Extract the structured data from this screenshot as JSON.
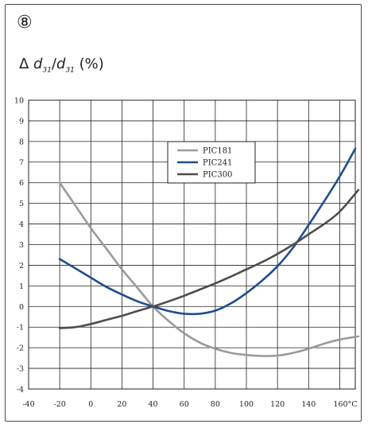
{
  "badge": "⑧",
  "ylabel": {
    "prefix": "Δ ",
    "d1": "d",
    "sub1": "31",
    "slash": "/",
    "d2": "d",
    "sub2": "31",
    "suffix": " (%)"
  },
  "chart_data": {
    "type": "line",
    "title": "",
    "xlabel": "",
    "ylabel": "Δ d31/d31 (%)",
    "x_unit": "°C",
    "xlim": [
      -40,
      170
    ],
    "ylim": [
      -4,
      10
    ],
    "x_ticks": [
      "-40",
      "-20",
      "0",
      "20",
      "40",
      "60",
      "80",
      "100",
      "120",
      "140",
      "160°C"
    ],
    "y_ticks": [
      "10",
      "9",
      "8",
      "7",
      "6",
      "5",
      "4",
      "3",
      "2",
      "1",
      "0",
      "-1",
      "-2",
      "-3",
      "-4"
    ],
    "grid": true,
    "legend_position": "top-right",
    "series": [
      {
        "name": "PIC181",
        "color": "#9a9a9a",
        "x": [
          -20,
          -10,
          0,
          10,
          20,
          30,
          40,
          50,
          60,
          70,
          80,
          90,
          100,
          110,
          120,
          130,
          140,
          150,
          160,
          172
        ],
        "y": [
          6.0,
          4.9,
          3.8,
          2.8,
          1.8,
          0.9,
          0.0,
          -0.7,
          -1.3,
          -1.75,
          -2.05,
          -2.25,
          -2.35,
          -2.4,
          -2.38,
          -2.25,
          -2.05,
          -1.8,
          -1.6,
          -1.45
        ]
      },
      {
        "name": "PIC241",
        "color": "#1f4e8c",
        "x": [
          -20,
          -10,
          0,
          10,
          20,
          30,
          40,
          50,
          60,
          70,
          80,
          90,
          100,
          110,
          120,
          130,
          140,
          150,
          160,
          170
        ],
        "y": [
          2.3,
          1.85,
          1.4,
          0.95,
          0.58,
          0.25,
          0.0,
          -0.22,
          -0.35,
          -0.35,
          -0.2,
          0.15,
          0.65,
          1.25,
          1.95,
          2.85,
          3.95,
          5.1,
          6.3,
          7.65
        ]
      },
      {
        "name": "PIC300",
        "color": "#4d4d4d",
        "x": [
          -20,
          -10,
          0,
          10,
          20,
          30,
          40,
          50,
          60,
          70,
          80,
          90,
          100,
          110,
          120,
          130,
          140,
          150,
          160,
          172
        ],
        "y": [
          -1.05,
          -1.0,
          -0.85,
          -0.65,
          -0.45,
          -0.22,
          0.0,
          0.25,
          0.52,
          0.82,
          1.12,
          1.45,
          1.8,
          2.15,
          2.55,
          3.0,
          3.5,
          4.0,
          4.6,
          5.65
        ]
      }
    ]
  }
}
